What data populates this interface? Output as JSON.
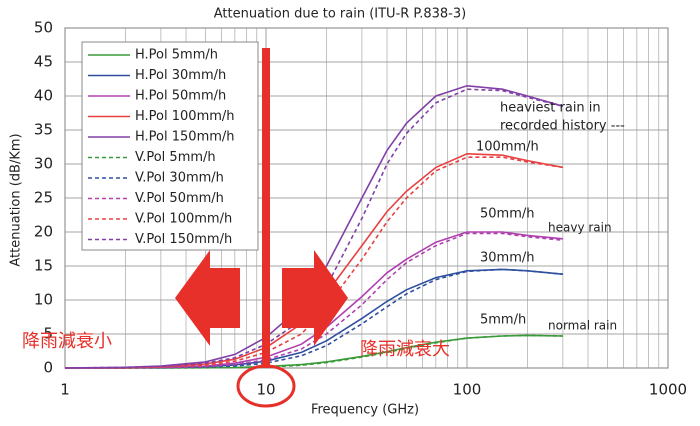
{
  "chart_data": {
    "type": "line",
    "title": "Attenuation due to rain (ITU-R P.838-3)",
    "x_label": "Frequency (GHz)",
    "y_label": "Attenuation (dB/Km)",
    "x_scale": "log",
    "xlim": [
      1,
      1000
    ],
    "xticks": [
      1,
      10,
      100,
      1000
    ],
    "x_minor_gridlines": [
      2,
      3,
      4,
      5,
      6,
      7,
      8,
      9,
      20,
      30,
      40,
      50,
      60,
      70,
      80,
      90,
      200,
      300,
      400,
      500,
      600,
      700,
      800,
      900
    ],
    "ylim": [
      0,
      50
    ],
    "yticks": [
      0,
      5,
      10,
      15,
      20,
      25,
      30,
      35,
      40,
      45,
      50
    ],
    "grid": true,
    "legend": "upper left",
    "x": [
      1,
      2,
      3,
      5,
      7,
      10,
      15,
      20,
      30,
      40,
      50,
      70,
      100,
      150,
      200,
      300
    ],
    "series": [
      {
        "name": "H.Pol 5mm/h",
        "color": "#3a9a3a",
        "linestyle": "solid",
        "values": [
          0,
          0,
          0.01,
          0.04,
          0.08,
          0.2,
          0.5,
          0.9,
          1.7,
          2.4,
          3,
          3.8,
          4.4,
          4.7,
          4.8,
          4.7
        ]
      },
      {
        "name": "H.Pol 30mm/h",
        "color": "#2f4fa0",
        "linestyle": "solid",
        "values": [
          0,
          0.02,
          0.06,
          0.2,
          0.45,
          1,
          2.3,
          4,
          7.3,
          9.8,
          11.5,
          13.3,
          14.3,
          14.5,
          14.3,
          13.8
        ]
      },
      {
        "name": "H.Pol 50mm/h",
        "color": "#b040b0",
        "linestyle": "solid",
        "values": [
          0,
          0.03,
          0.1,
          0.3,
          0.7,
          1.6,
          3.5,
          6,
          10.5,
          14,
          16,
          18.5,
          20,
          20,
          19.5,
          19
        ]
      },
      {
        "name": "H.Pol 100mm/h",
        "color": "#e84040",
        "linestyle": "solid",
        "values": [
          0,
          0.05,
          0.2,
          0.6,
          1.3,
          3,
          6.5,
          11,
          18,
          23,
          26,
          29.5,
          31.5,
          31.3,
          30.5,
          29.5
        ]
      },
      {
        "name": "H.Pol 150mm/h",
        "color": "#8040a8",
        "linestyle": "solid",
        "values": [
          0,
          0.1,
          0.3,
          0.9,
          2,
          4.5,
          9,
          15,
          25,
          32,
          36,
          40,
          41.5,
          41,
          40,
          38.5
        ]
      },
      {
        "name": "V.Pol 5mm/h",
        "color": "#3a9a3a",
        "linestyle": "dashed",
        "values": [
          0,
          0,
          0.01,
          0.03,
          0.06,
          0.15,
          0.4,
          0.8,
          1.6,
          2.3,
          2.9,
          3.7,
          4.4,
          4.7,
          4.8,
          4.7
        ]
      },
      {
        "name": "V.Pol 30mm/h",
        "color": "#2f4fa0",
        "linestyle": "dashed",
        "values": [
          0,
          0.01,
          0.04,
          0.13,
          0.3,
          0.7,
          1.8,
          3.3,
          6.5,
          9,
          10.9,
          13,
          14.2,
          14.5,
          14.3,
          13.8
        ]
      },
      {
        "name": "V.Pol 50mm/h",
        "color": "#b040b0",
        "linestyle": "dashed",
        "values": [
          0,
          0.02,
          0.07,
          0.2,
          0.5,
          1.2,
          2.8,
          5,
          9.3,
          13,
          15.5,
          18,
          19.8,
          19.8,
          19.3,
          18.8
        ]
      },
      {
        "name": "V.Pol 100mm/h",
        "color": "#e84040",
        "linestyle": "dashed",
        "values": [
          0,
          0.05,
          0.15,
          0.4,
          1,
          2.3,
          5,
          9,
          16,
          21.5,
          25,
          29,
          31,
          31,
          30.3,
          29.5
        ]
      },
      {
        "name": "V.Pol 150mm/h",
        "color": "#8040a8",
        "linestyle": "dashed",
        "values": [
          0,
          0.1,
          0.25,
          0.7,
          1.5,
          3.5,
          7,
          12,
          22,
          30,
          34.5,
          39,
          41,
          40.8,
          39.8,
          38.5
        ]
      }
    ],
    "annotations": [
      "heaviest rain in",
      "recorded history ---",
      "100mm/h",
      "50mm/h",
      "heavy rain",
      "30mm/h",
      "5mm/h",
      "normal rain",
      "降雨減衰小",
      "降雨減衰大"
    ]
  }
}
